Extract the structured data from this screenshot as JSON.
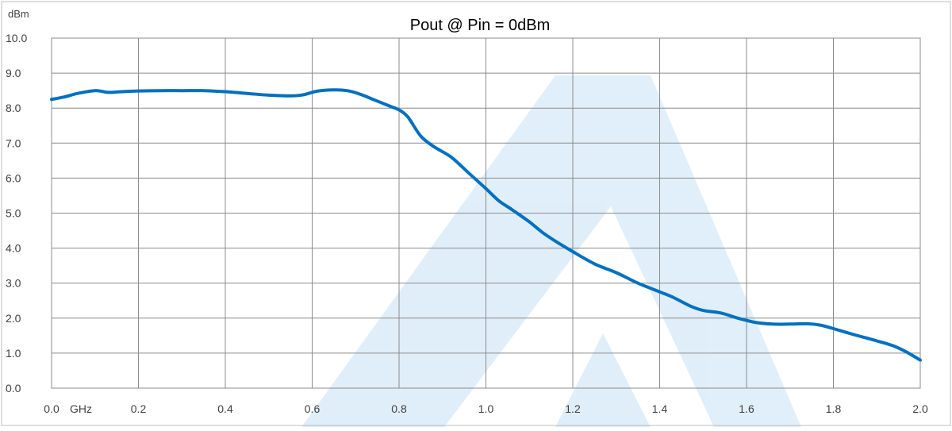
{
  "chart_data": {
    "type": "line",
    "title": "Pout @ Pin = 0dBm",
    "y_unit": "dBm",
    "x_unit": "GHz",
    "xlim": [
      0.0,
      2.0
    ],
    "ylim": [
      0.0,
      10.0
    ],
    "x_ticks": [
      "0.0",
      "0.2",
      "0.4",
      "0.6",
      "0.8",
      "1.0",
      "1.2",
      "1.4",
      "1.6",
      "1.8",
      "2.0"
    ],
    "y_ticks": [
      "0.0",
      "1.0",
      "2.0",
      "3.0",
      "4.0",
      "5.0",
      "6.0",
      "7.0",
      "8.0",
      "9.0",
      "10.0"
    ],
    "grid": true,
    "legend": "none",
    "series": [
      {
        "color": "#0070c0",
        "x": [
          0.0,
          0.03,
          0.06,
          0.1,
          0.13,
          0.16,
          0.2,
          0.25,
          0.3,
          0.35,
          0.4,
          0.45,
          0.5,
          0.55,
          0.58,
          0.61,
          0.65,
          0.68,
          0.71,
          0.74,
          0.78,
          0.8,
          0.82,
          0.85,
          0.88,
          0.92,
          0.96,
          1.0,
          1.03,
          1.06,
          1.1,
          1.13,
          1.16,
          1.2,
          1.25,
          1.3,
          1.35,
          1.4,
          1.43,
          1.47,
          1.5,
          1.54,
          1.58,
          1.62,
          1.66,
          1.7,
          1.74,
          1.77,
          1.8,
          1.85,
          1.9,
          1.94,
          1.97,
          2.0
        ],
        "y": [
          8.25,
          8.32,
          8.42,
          8.5,
          8.45,
          8.47,
          8.49,
          8.5,
          8.5,
          8.5,
          8.47,
          8.42,
          8.37,
          8.35,
          8.38,
          8.48,
          8.52,
          8.5,
          8.4,
          8.25,
          8.05,
          7.95,
          7.75,
          7.2,
          6.9,
          6.6,
          6.15,
          5.7,
          5.35,
          5.1,
          4.75,
          4.45,
          4.2,
          3.9,
          3.55,
          3.3,
          3.0,
          2.75,
          2.6,
          2.35,
          2.22,
          2.15,
          2.0,
          1.88,
          1.83,
          1.83,
          1.84,
          1.8,
          1.7,
          1.52,
          1.35,
          1.2,
          1.02,
          0.8
        ]
      }
    ]
  }
}
